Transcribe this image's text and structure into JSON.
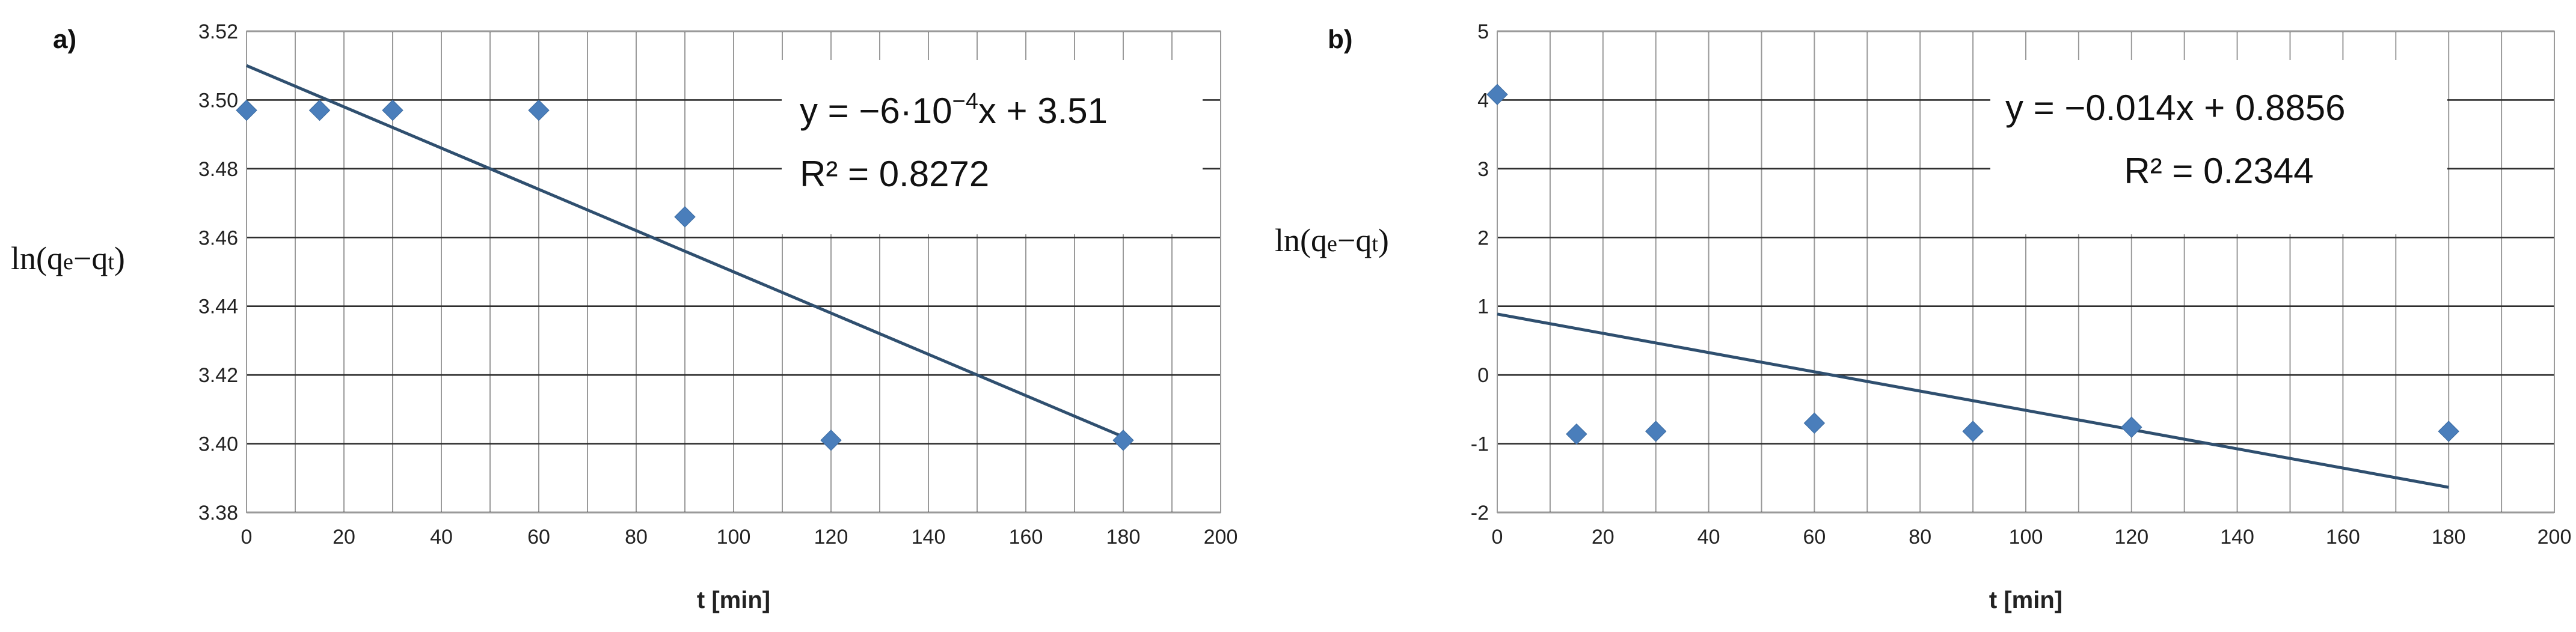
{
  "chart_data": [
    {
      "type": "scatter",
      "panel_label": "a)",
      "xlabel": "t [min]",
      "ylabel": {
        "prefix": "ln(q",
        "sub1": "e",
        "mid": "−q",
        "sub2": "t",
        "suffix": ")"
      },
      "xlim": [
        0,
        200
      ],
      "ylim": [
        3.38,
        3.52
      ],
      "x_ticks": [
        0,
        20,
        40,
        60,
        80,
        100,
        120,
        140,
        160,
        180,
        200
      ],
      "y_ticks": [
        "3.38",
        "3.40",
        "3.42",
        "3.44",
        "3.46",
        "3.48",
        "3.50",
        "3.52"
      ],
      "y_tick_values": [
        3.38,
        3.4,
        3.42,
        3.44,
        3.46,
        3.48,
        3.5,
        3.52
      ],
      "x_minor_step": 10,
      "grid": true,
      "points": [
        {
          "x": 0,
          "y": 3.497
        },
        {
          "x": 15,
          "y": 3.497
        },
        {
          "x": 30,
          "y": 3.497
        },
        {
          "x": 60,
          "y": 3.497
        },
        {
          "x": 90,
          "y": 3.466
        },
        {
          "x": 120,
          "y": 3.401
        },
        {
          "x": 180,
          "y": 3.401
        }
      ],
      "trendline": {
        "slope": -0.0006,
        "intercept": 3.51,
        "x_range": [
          0,
          180
        ]
      },
      "equation": {
        "line1_pre": "y = −6·10",
        "line1_sup": "−4",
        "line1_post": "x + 3.51",
        "line2": "R² = 0.8272"
      }
    },
    {
      "type": "scatter",
      "panel_label": "b)",
      "xlabel": "t [min]",
      "ylabel": {
        "prefix": "ln(q",
        "sub1": "e",
        "mid": "−q",
        "sub2": "t",
        "suffix": ")"
      },
      "xlim": [
        0,
        200
      ],
      "ylim": [
        -2,
        5
      ],
      "x_ticks": [
        0,
        20,
        40,
        60,
        80,
        100,
        120,
        140,
        160,
        180,
        200
      ],
      "y_ticks": [
        "-2",
        "-1",
        "0",
        "1",
        "2",
        "3",
        "4",
        "5"
      ],
      "y_tick_values": [
        -2,
        -1,
        0,
        1,
        2,
        3,
        4,
        5
      ],
      "x_minor_step": 10,
      "grid": true,
      "points": [
        {
          "x": 0,
          "y": 4.08
        },
        {
          "x": 15,
          "y": -0.86
        },
        {
          "x": 30,
          "y": -0.82
        },
        {
          "x": 60,
          "y": -0.7
        },
        {
          "x": 90,
          "y": -0.82
        },
        {
          "x": 120,
          "y": -0.76
        },
        {
          "x": 180,
          "y": -0.82
        }
      ],
      "trendline": {
        "slope": -0.014,
        "intercept": 0.8856,
        "x_range": [
          0,
          180
        ]
      },
      "equation": {
        "line1_pre": "y = −0.014x + 0.8856",
        "line1_sup": "",
        "line1_post": "",
        "line2": "R² = 0.2344"
      }
    }
  ],
  "colors": {
    "marker": "#4a7ebb",
    "trendline": "#2f4f6f",
    "grid_major": "#2e2e2e",
    "grid_minor": "#9a9a9a"
  }
}
